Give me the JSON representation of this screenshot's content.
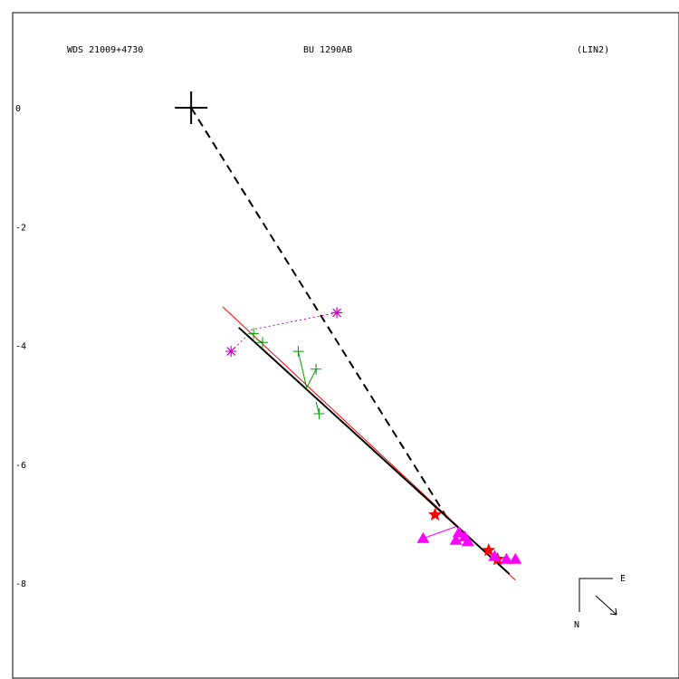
{
  "chart_data": {
    "type": "scatter",
    "header": {
      "left": "WDS 21009+4730",
      "center": "BU 1290AB",
      "right": "(LIN2)"
    },
    "y_ticks": [
      "0",
      "-2",
      "-4",
      "-6",
      "-8"
    ],
    "ylim": [
      -9.6,
      1.6
    ],
    "xlim": [
      -3.0,
      8.2
    ],
    "compass": {
      "east": "E",
      "north": "N"
    },
    "primary": {
      "x": 0,
      "y": 0
    },
    "node_line": {
      "from": {
        "x": 0,
        "y": 0
      },
      "to": {
        "x": 4.3,
        "y": -6.9
      }
    },
    "orbit_fit_line": {
      "from": {
        "x": 0.8,
        "y": -3.7
      },
      "to": {
        "x": 5.35,
        "y": -7.85
      }
    },
    "linear_fit_line": {
      "from": {
        "x": 0.53,
        "y": -3.35
      },
      "to": {
        "x": 5.45,
        "y": -7.95
      }
    },
    "series": [
      {
        "marker": "asterisk",
        "color": "#cc00cc",
        "points": [
          {
            "x": 2.45,
            "y": -3.45,
            "fx": 0.95,
            "fy": -3.75
          },
          {
            "x": 0.67,
            "y": -4.1,
            "fx": 0.93,
            "fy": -3.85
          }
        ]
      },
      {
        "marker": "plus",
        "color": "#009900",
        "points": [
          {
            "x": 1.2,
            "y": -3.95,
            "fx": 1.1,
            "fy": -3.9
          },
          {
            "x": 1.8,
            "y": -4.1,
            "fx": 1.95,
            "fy": -4.75
          },
          {
            "x": 2.1,
            "y": -4.4,
            "fx": 1.95,
            "fy": -4.7
          },
          {
            "x": 2.15,
            "y": -5.15,
            "fx": 2.1,
            "fy": -4.95
          },
          {
            "x": 1.05,
            "y": -3.8,
            "fx": 1.05,
            "fy": -3.8
          }
        ]
      },
      {
        "marker": "star",
        "color": "#ff0000",
        "points": [
          {
            "x": 4.1,
            "y": -6.85,
            "fx": 4.1,
            "fy": -6.85
          },
          {
            "x": 5.0,
            "y": -7.45,
            "fx": 5.0,
            "fy": -7.45
          },
          {
            "x": 5.15,
            "y": -7.6,
            "fx": 5.15,
            "fy": -7.6
          }
        ]
      },
      {
        "marker": "triangle",
        "color": "#ff00ff",
        "points": [
          {
            "x": 3.9,
            "y": -7.25,
            "fx": 4.45,
            "fy": -7.05
          },
          {
            "x": 4.5,
            "y": -7.15,
            "fx": 4.5,
            "fy": -7.15
          },
          {
            "x": 4.45,
            "y": -7.28,
            "fx": 4.5,
            "fy": -7.2
          },
          {
            "x": 4.6,
            "y": -7.22,
            "fx": 4.6,
            "fy": -7.22
          },
          {
            "x": 4.65,
            "y": -7.3,
            "fx": 4.65,
            "fy": -7.3
          },
          {
            "x": 5.1,
            "y": -7.55,
            "fx": 5.1,
            "fy": -7.55
          },
          {
            "x": 5.3,
            "y": -7.6,
            "fx": 5.3,
            "fy": -7.6
          },
          {
            "x": 5.45,
            "y": -7.6,
            "fx": 5.4,
            "fy": -7.65
          }
        ]
      }
    ]
  }
}
